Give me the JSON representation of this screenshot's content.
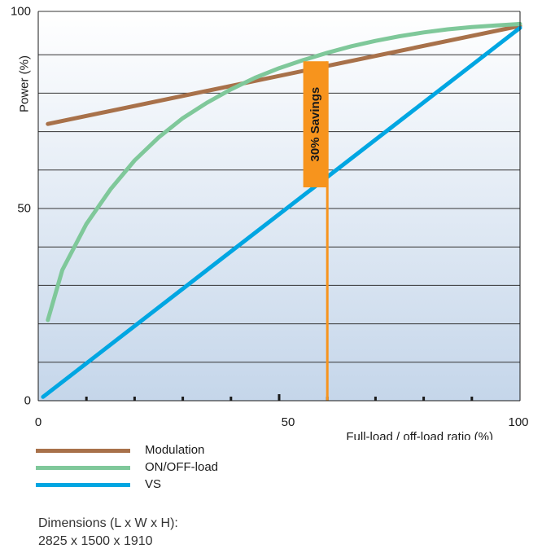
{
  "chart_data": {
    "type": "line",
    "xlabel": "Full-load / off-load ratio (%)",
    "ylabel": "Power (%)",
    "xlim": [
      0,
      100
    ],
    "ylim": [
      0,
      100
    ],
    "x_ticks": [
      "0",
      "50",
      "100"
    ],
    "y_ticks": [
      "0",
      "50",
      "100"
    ],
    "grid": "horizontal",
    "series": [
      {
        "name": "Modulation",
        "color": "#a8714a",
        "x": [
          2,
          100
        ],
        "y": [
          72,
          97.5
        ]
      },
      {
        "name": "ON/OFF-load",
        "color": "#7fc89a",
        "x": [
          2,
          5,
          10,
          15,
          20,
          25,
          30,
          35,
          40,
          45,
          50,
          55,
          60,
          65,
          70,
          75,
          80,
          85,
          90,
          95,
          100
        ],
        "y": [
          21,
          34,
          46,
          55,
          62.5,
          68.5,
          73.5,
          77.5,
          81,
          84,
          86.5,
          88.6,
          90.5,
          92.2,
          93.6,
          94.8,
          95.8,
          96.6,
          97.2,
          97.6,
          98
        ]
      },
      {
        "name": "VS",
        "color": "#00a6e2",
        "x": [
          1,
          100
        ],
        "y": [
          1,
          97
        ]
      }
    ],
    "annotations": [
      {
        "text": "30% Savings",
        "x_from": 55,
        "x_to": 60,
        "y_bottom": 55.5,
        "y_top": 88.3,
        "color": "#f7941d"
      }
    ],
    "marker_line": {
      "x": 60,
      "color": "#f7941d"
    }
  },
  "legend": [
    {
      "label": "Modulation",
      "color": "#a8714a"
    },
    {
      "label": "ON/OFF-load",
      "color": "#7fc89a"
    },
    {
      "label": "VS",
      "color": "#00a6e2"
    }
  ],
  "note": {
    "line1": "Dimensions (L x W x H):",
    "line2": "2825 x 1500 x 1910"
  }
}
